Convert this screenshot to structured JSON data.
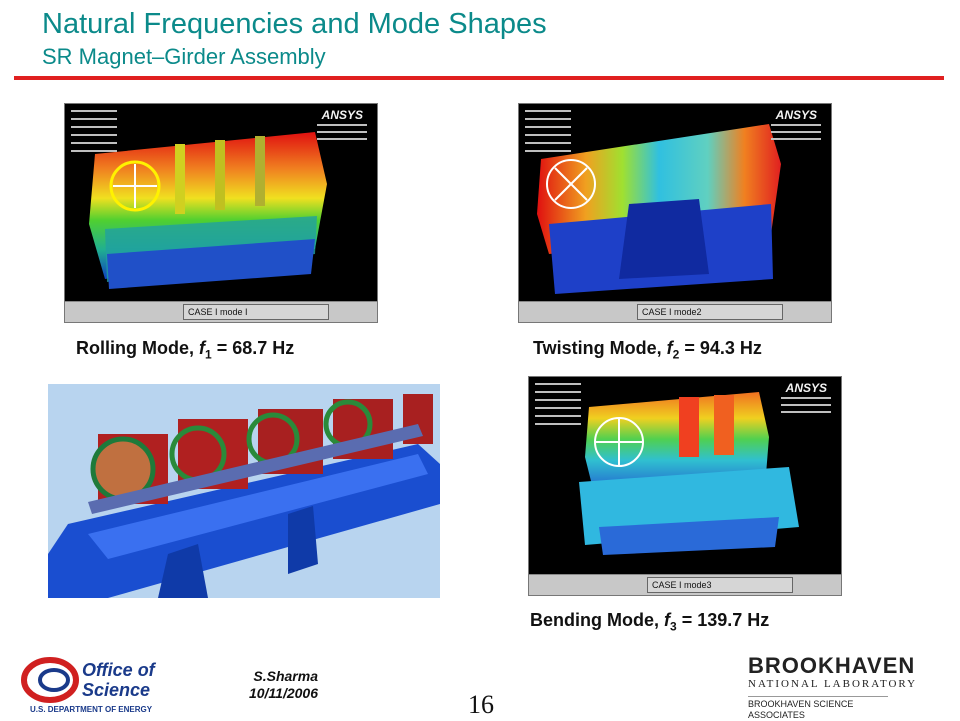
{
  "title": "Natural Frequencies and Mode Shapes",
  "subtitle": "SR Magnet–Girder Assembly",
  "colors": {
    "title": "#0b8a8a",
    "rule": "#e02020"
  },
  "panels": [
    {
      "caption": "CASE I mode I",
      "ansys_logo": "ANSYS"
    },
    {
      "caption": "CASE I mode2",
      "ansys_logo": "ANSYS"
    },
    {
      "caption": "CASE I mode3",
      "ansys_logo": "ANSYS"
    }
  ],
  "modes": [
    {
      "name": "Rolling Mode, ",
      "symbol": "f",
      "index": "1",
      "value": " = 68.7 Hz"
    },
    {
      "name": "Twisting Mode, ",
      "symbol": "f",
      "index": "2",
      "value": " = 94.3 Hz"
    },
    {
      "name": "Bending Mode, ",
      "symbol": "f",
      "index": "3",
      "value": " = 139.7 Hz"
    }
  ],
  "footer": {
    "doe_logo_line1": "Office of",
    "doe_logo_line2": "Science",
    "doe_logo_line3": "U.S. DEPARTMENT OF ENERGY",
    "author": "S.Sharma",
    "date": "10/11/2006",
    "page": "16",
    "bnl_name": "BROOKHAVEN",
    "bnl_sub": "NATIONAL LABORATORY",
    "bnl_assoc_line1": "BROOKHAVEN SCIENCE",
    "bnl_assoc_line2": "ASSOCIATES"
  }
}
